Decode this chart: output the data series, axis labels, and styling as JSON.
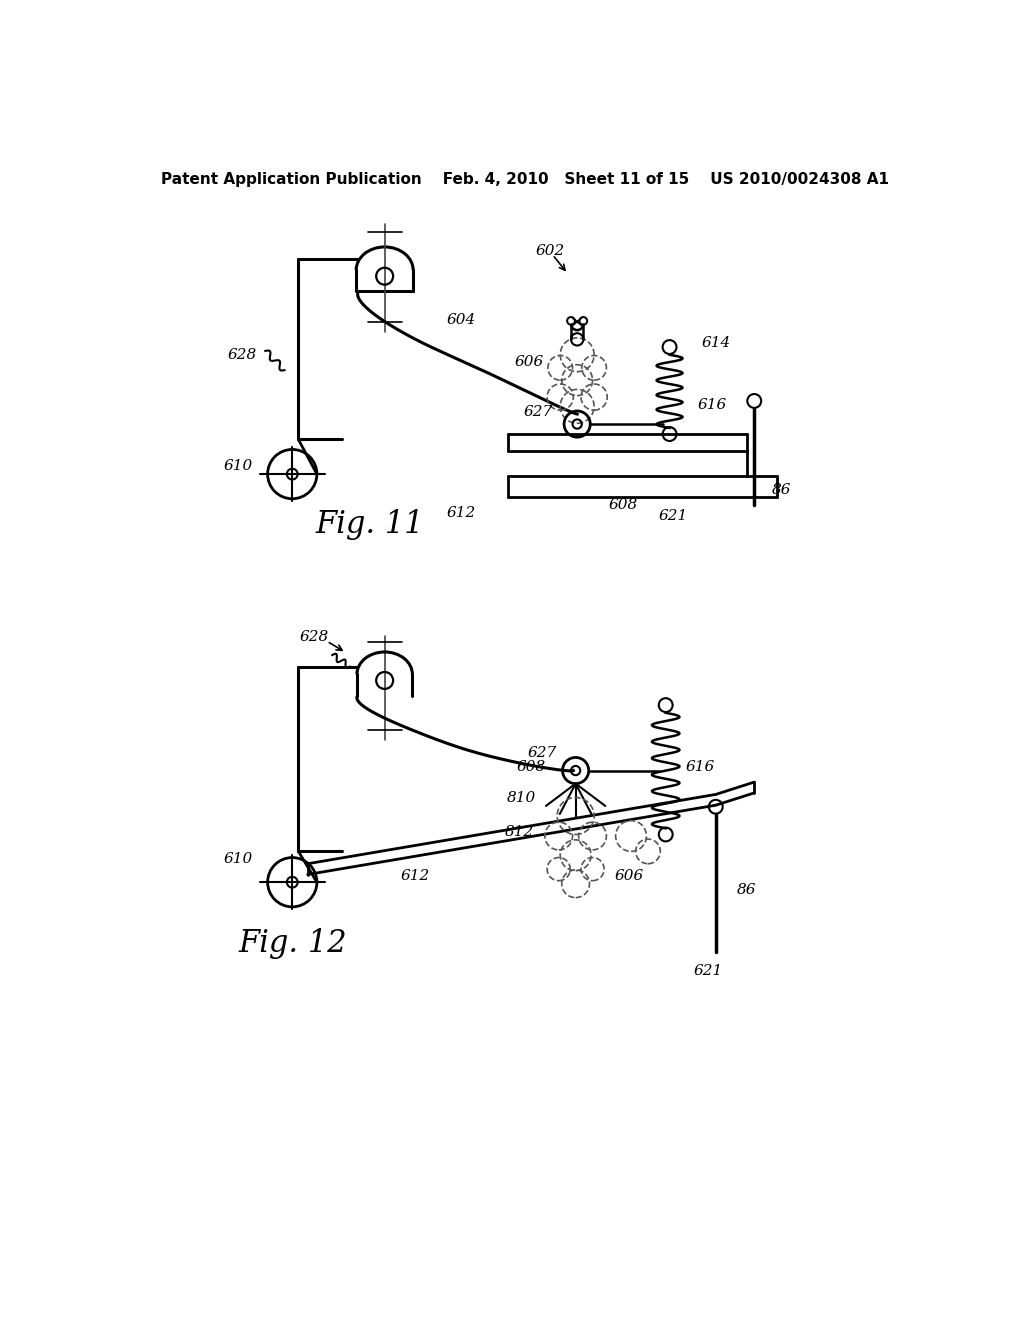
{
  "bg_color": "#ffffff",
  "header_text": "Patent Application Publication    Feb. 4, 2010   Sheet 11 of 15    US 2010/0024308 A1",
  "header_fontsize": 11,
  "fig11_label": "Fig. 11",
  "fig12_label": "Fig. 12",
  "line_color": "#000000",
  "label_fontsize": 11,
  "fig_label_fontsize": 22
}
